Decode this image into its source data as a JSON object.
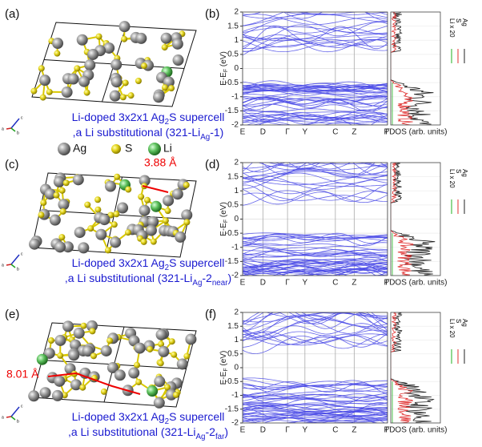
{
  "panels": [
    {
      "structure": {
        "label": "(a)",
        "caption_line1": [
          {
            "text": "Li-doped 3x2x1 Ag"
          },
          {
            "sub": "2"
          },
          {
            "text": "S supercell"
          }
        ],
        "caption_line2": [
          {
            "text": ",a Li substitutional (321-Li"
          },
          {
            "sub": "Ag"
          },
          {
            "text": "-1)"
          }
        ],
        "axes": [
          "a",
          "b",
          "c"
        ]
      },
      "bands": {
        "label": "(b)"
      }
    },
    {
      "structure": {
        "label": "(c)",
        "caption_line1": [
          {
            "text": "Li-doped 3x2x1 Ag"
          },
          {
            "sub": "2"
          },
          {
            "text": "S supercell"
          }
        ],
        "caption_line2": [
          {
            "text": ",a Li substitutional (321-Li"
          },
          {
            "sub": "Ag"
          },
          {
            "text": "-2"
          },
          {
            "sub": "near"
          },
          {
            "text": ")"
          }
        ],
        "axes": [
          "a",
          "b",
          "c"
        ],
        "annotation": "3.88 Å"
      },
      "bands": {
        "label": "(d)"
      }
    },
    {
      "structure": {
        "label": "(e)",
        "caption_line1": [
          {
            "text": "Li-doped 3x2x1 Ag"
          },
          {
            "sub": "2"
          },
          {
            "text": "S supercell"
          }
        ],
        "caption_line2": [
          {
            "text": ",a Li substitutional (321-Li"
          },
          {
            "sub": "Ag"
          },
          {
            "text": "-2"
          },
          {
            "sub": "far"
          },
          {
            "text": ")"
          }
        ],
        "axes": [
          "a",
          "b",
          "c"
        ],
        "annotation": "8.01 Å"
      },
      "bands": {
        "label": "(f)"
      }
    }
  ],
  "species_legend": [
    "Ag",
    "S",
    "Li"
  ],
  "band_axis": {
    "ylabel": [
      {
        "text": "E-E"
      },
      {
        "sub": "F"
      },
      {
        "text": " (eV)"
      }
    ],
    "ylim": [
      -2,
      2
    ],
    "yticks": [
      2,
      1.5,
      1,
      0.5,
      0,
      -0.5,
      -1,
      -1.5,
      -2
    ],
    "kpoints": [
      "E",
      "D",
      "Γ",
      "Y",
      "C",
      "Z",
      "Γ"
    ],
    "pdos_label": "PDOS (arb. units)",
    "pdos_legend": [
      "Ag",
      "S",
      "Li x 20"
    ]
  }
}
